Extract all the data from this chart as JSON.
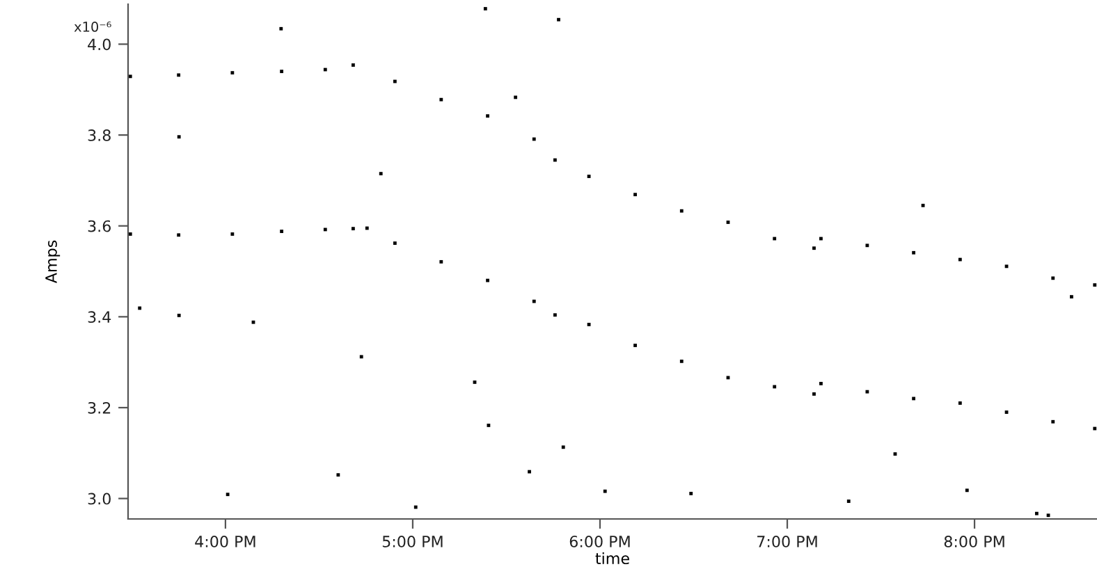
{
  "chart_data": {
    "type": "scatter",
    "xlabel": "time",
    "ylabel": "Amps",
    "annotations": [
      "x10⁻⁶"
    ],
    "xlim": [
      15.48,
      20.654
    ],
    "ylim": [
      2.955,
      4.088
    ],
    "xticks": [
      {
        "value": 16,
        "label": "4:00 PM"
      },
      {
        "value": 17,
        "label": "5:00 PM"
      },
      {
        "value": 18,
        "label": "6:00 PM"
      },
      {
        "value": 19,
        "label": "7:00 PM"
      },
      {
        "value": 20,
        "label": "8:00 PM"
      }
    ],
    "yticks": [
      {
        "value": 3,
        "label": "3.0"
      },
      {
        "value": 3.2,
        "label": "3.2"
      },
      {
        "value": 3.4,
        "label": "3.4"
      },
      {
        "value": 3.6,
        "label": "3.6"
      },
      {
        "value": 3.8,
        "label": "3.8"
      },
      {
        "value": 4,
        "label": "4.0"
      }
    ],
    "grid": false,
    "marker": "square",
    "series": [
      {
        "color": "#000000",
        "x": [
          15.492,
          15.75,
          16.037,
          16.3,
          16.533,
          16.682,
          16.756,
          16.905,
          17.152,
          17.4,
          17.648,
          17.76,
          17.941,
          18.188,
          18.436,
          18.684,
          18.932,
          19.143,
          19.18,
          19.427,
          19.675,
          19.923,
          20.171,
          20.419,
          20.642
        ],
        "values": [
          3.582,
          3.58,
          3.582,
          3.588,
          3.592,
          3.594,
          3.595,
          3.562,
          3.521,
          3.48,
          3.434,
          3.404,
          3.383,
          3.337,
          3.302,
          3.266,
          3.246,
          3.23,
          3.253,
          3.235,
          3.22,
          3.21,
          3.19,
          3.169,
          3.154
        ]
      },
      {
        "color": "#000000",
        "x": [
          15.492,
          15.75,
          16.037,
          16.3,
          16.533,
          16.682,
          16.905,
          17.152,
          17.4,
          17.648,
          17.76,
          17.941,
          18.188,
          18.436,
          18.684,
          18.932,
          19.143,
          19.18,
          19.427,
          19.675,
          19.923,
          20.171,
          20.419,
          20.642
        ],
        "values": [
          3.929,
          3.932,
          3.937,
          3.94,
          3.944,
          3.954,
          3.918,
          3.878,
          3.842,
          3.791,
          3.745,
          3.709,
          3.669,
          3.633,
          3.608,
          3.572,
          3.551,
          3.572,
          3.557,
          3.541,
          3.526,
          3.511,
          3.485,
          3.47
        ]
      },
      {
        "color": "#000000",
        "x": [
          16.297,
          17.388,
          15.752,
          16.012,
          16.602,
          17.016,
          16.726,
          17.331,
          17.405,
          17.623,
          16.149,
          15.542,
          15.752,
          17.549,
          16.83,
          17.779,
          19.725,
          18.027,
          18.486,
          19.328,
          19.96,
          20.332,
          20.394,
          19.576,
          17.804,
          20.518
        ],
        "values": [
          4.034,
          4.078,
          3.796,
          3.009,
          3.052,
          2.981,
          3.312,
          3.256,
          3.161,
          3.059,
          3.388,
          3.419,
          3.403,
          3.883,
          3.715,
          4.054,
          3.645,
          3.016,
          3.011,
          2.994,
          3.018,
          2.967,
          2.963,
          3.098,
          3.113,
          3.444
        ]
      }
    ]
  }
}
